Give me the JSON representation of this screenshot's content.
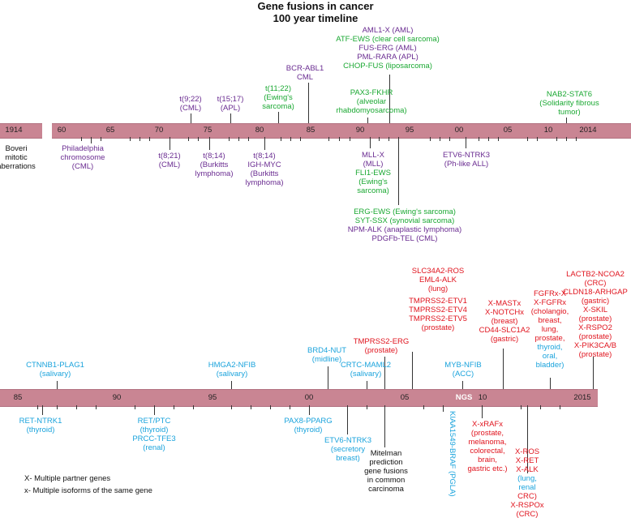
{
  "title": [
    "Gene fusions in cancer",
    "100 year timeline"
  ],
  "timeline1": {
    "start_label": "1914",
    "years": [
      "60",
      "65",
      "70",
      "75",
      "80",
      "85",
      "90",
      "95",
      "00",
      "05",
      "10",
      "2014"
    ],
    "above": [
      {
        "id": "t922",
        "lines": [
          "t(9;22)",
          "(CML)"
        ],
        "color": "purple"
      },
      {
        "id": "t1517",
        "lines": [
          "t(15;17)",
          "(APL)"
        ],
        "color": "purple"
      },
      {
        "id": "t1122",
        "lines": [
          "t(11;22)",
          "(Ewing's",
          "sarcoma)"
        ],
        "color": "green"
      },
      {
        "id": "bcrabl",
        "lines": [
          "BCR-ABL1",
          "CML"
        ],
        "color": "purple"
      },
      {
        "id": "pax3",
        "lines": [
          "PAX3-FKHR",
          "(alveolar",
          "rhabdomyosarcoma)"
        ],
        "color": "green"
      },
      {
        "id": "aml1",
        "lines": [
          "AML1-X (AML)"
        ],
        "color": "purple"
      },
      {
        "id": "atf",
        "lines": [
          "ATF-EWS (clear cell sarcoma)"
        ],
        "color": "green"
      },
      {
        "id": "fuserg",
        "lines": [
          "FUS-ERG (AML)"
        ],
        "color": "purple"
      },
      {
        "id": "pmlrara",
        "lines": [
          "PML-RARA (APL)"
        ],
        "color": "purple"
      },
      {
        "id": "chop",
        "lines": [
          "CHOP-FUS (liposarcoma)"
        ],
        "color": "green"
      },
      {
        "id": "nab2",
        "lines": [
          "NAB2-STAT6",
          "(Solidarity fibrous",
          "tumor)"
        ],
        "color": "green"
      }
    ],
    "below": [
      {
        "id": "boveri",
        "lines": [
          "Boveri",
          "mitotic",
          "aberrations"
        ],
        "color": "black"
      },
      {
        "id": "phil",
        "lines": [
          "Philadelphia",
          "chromosome",
          "(CML)"
        ],
        "color": "purple"
      },
      {
        "id": "t821",
        "lines": [
          "t(8;21)",
          "(CML)"
        ],
        "color": "purple"
      },
      {
        "id": "t814a",
        "lines": [
          "t(8;14)",
          "(Burkitts",
          "lymphoma)"
        ],
        "color": "purple"
      },
      {
        "id": "t814b",
        "lines": [
          "t(8;14)",
          "IGH-MYC",
          "(Burkitts",
          "lymphoma)"
        ],
        "color": "purple"
      },
      {
        "id": "mllx",
        "lines": [
          "MLL-X",
          "(MLL)"
        ],
        "color": "purple"
      },
      {
        "id": "fli1",
        "lines": [
          "FLI1-EWS",
          "(Ewing's",
          "sarcoma)"
        ],
        "color": "green"
      },
      {
        "id": "etv6ntrk3",
        "lines": [
          "ETV6-NTRK3",
          "(Ph-like ALL)"
        ],
        "color": "purple"
      },
      {
        "id": "ergews",
        "lines": [
          "ERG-EWS (Ewing's sarcoma)"
        ],
        "color": "green"
      },
      {
        "id": "sytssx",
        "lines": [
          "SYT-SSX (synovial sarcoma)"
        ],
        "color": "green"
      },
      {
        "id": "npmalk",
        "lines": [
          "NPM-ALK (anaplastic lymphoma)"
        ],
        "color": "purple"
      },
      {
        "id": "pdgfb",
        "lines": [
          "PDGFb-TEL (CML)"
        ],
        "color": "purple"
      }
    ]
  },
  "timeline2": {
    "years": [
      "85",
      "90",
      "95",
      "00",
      "05",
      "NGS",
      "10",
      "2015"
    ],
    "above": [
      {
        "id": "ctnnb1",
        "lines": [
          "CTNNB1-PLAG1",
          "(salivary)"
        ],
        "color": "blue"
      },
      {
        "id": "hmga2",
        "lines": [
          "HMGA2-NFIB",
          "(salivary)"
        ],
        "color": "blue"
      },
      {
        "id": "brd4",
        "lines": [
          "BRD4-NUT",
          "(midline)"
        ],
        "color": "blue"
      },
      {
        "id": "crtc",
        "lines": [
          "CRTC-MAML2",
          "(salivary)"
        ],
        "color": "blue"
      },
      {
        "id": "tmprss2erg",
        "lines": [
          "TMPRSS2-ERG",
          "(prostate)"
        ],
        "color": "red"
      },
      {
        "id": "slc34a2",
        "lines": [
          "SLC34A2-ROS",
          "EML4-ALK",
          "(lung)",
          "",
          "TMPRSS2-ETV1",
          "TMPRSS2-ETV4",
          "TMPRSS2-ETV5",
          "(prostate)"
        ],
        "color": "red"
      },
      {
        "id": "mybnfib",
        "lines": [
          "MYB-NFIB",
          "(ACC)"
        ],
        "color": "blue"
      },
      {
        "id": "xmast",
        "lines": [
          "X-MASTx",
          "X-NOTCHx",
          "(breast)",
          "CD44-SLC1A2",
          "(gastric)"
        ],
        "color": "red"
      },
      {
        "id": "fgfr",
        "lines": [
          "FGFRx-X",
          "X-FGFRx",
          "(cholangio,",
          "breast,",
          "lung,",
          "prostate,",
          "thyroid,",
          "oral,",
          "bladder)"
        ],
        "color": "red"
      },
      {
        "id": "lactb2",
        "lines": [
          "LACTB2-NCOA2",
          "(CRC)",
          "CLDN18-ARHGAP",
          "(gastric)",
          "X-SKIL",
          "(prostate)",
          "X-RSPO2",
          "(prostate)",
          "X-PIK3CA/B",
          "(prostate)"
        ],
        "color": "red"
      }
    ],
    "below": [
      {
        "id": "retntrk1",
        "lines": [
          "RET-NTRK1",
          "(thyroid)"
        ],
        "color": "blue"
      },
      {
        "id": "retptc",
        "lines": [
          "RET/PTC",
          "(thyroid)",
          "PRCC-TFE3",
          "(renal)"
        ],
        "color": "blue"
      },
      {
        "id": "pax8",
        "lines": [
          "PAX8-PPARG",
          "(thyroid)"
        ],
        "color": "blue"
      },
      {
        "id": "etv6sec",
        "lines": [
          "ETV6-NTRK3",
          "(secretory",
          "breast)"
        ],
        "color": "blue"
      },
      {
        "id": "mitelman",
        "lines": [
          "Mitelman",
          "prediction",
          "gene fusions",
          "in common",
          "carcinoma"
        ],
        "color": "black"
      },
      {
        "id": "kiaa",
        "lines": [
          "KIAA1549-BRAF",
          "(PGLA)"
        ],
        "color": "blue"
      },
      {
        "id": "xraf",
        "lines": [
          "X-xRAFx",
          "(prostate,",
          "melanoma,",
          "colorectal,",
          "brain,",
          "gastric etc.)"
        ],
        "color": "red"
      },
      {
        "id": "xros",
        "lines": [
          "X-ROS",
          "X-RET",
          "X-ALK",
          "(lung,",
          "renal",
          "CRC)",
          "X-RSPOx",
          "(CRC)"
        ],
        "color": "red"
      }
    ]
  },
  "legend": [
    "X- Multiple partner genes",
    "x- Multiple isoforms of the same gene"
  ],
  "colors": {
    "purple": "#6a2c91",
    "green": "#1aa832",
    "blue": "#1aa3dc",
    "red": "#e0141e",
    "bar": "#c98593"
  }
}
